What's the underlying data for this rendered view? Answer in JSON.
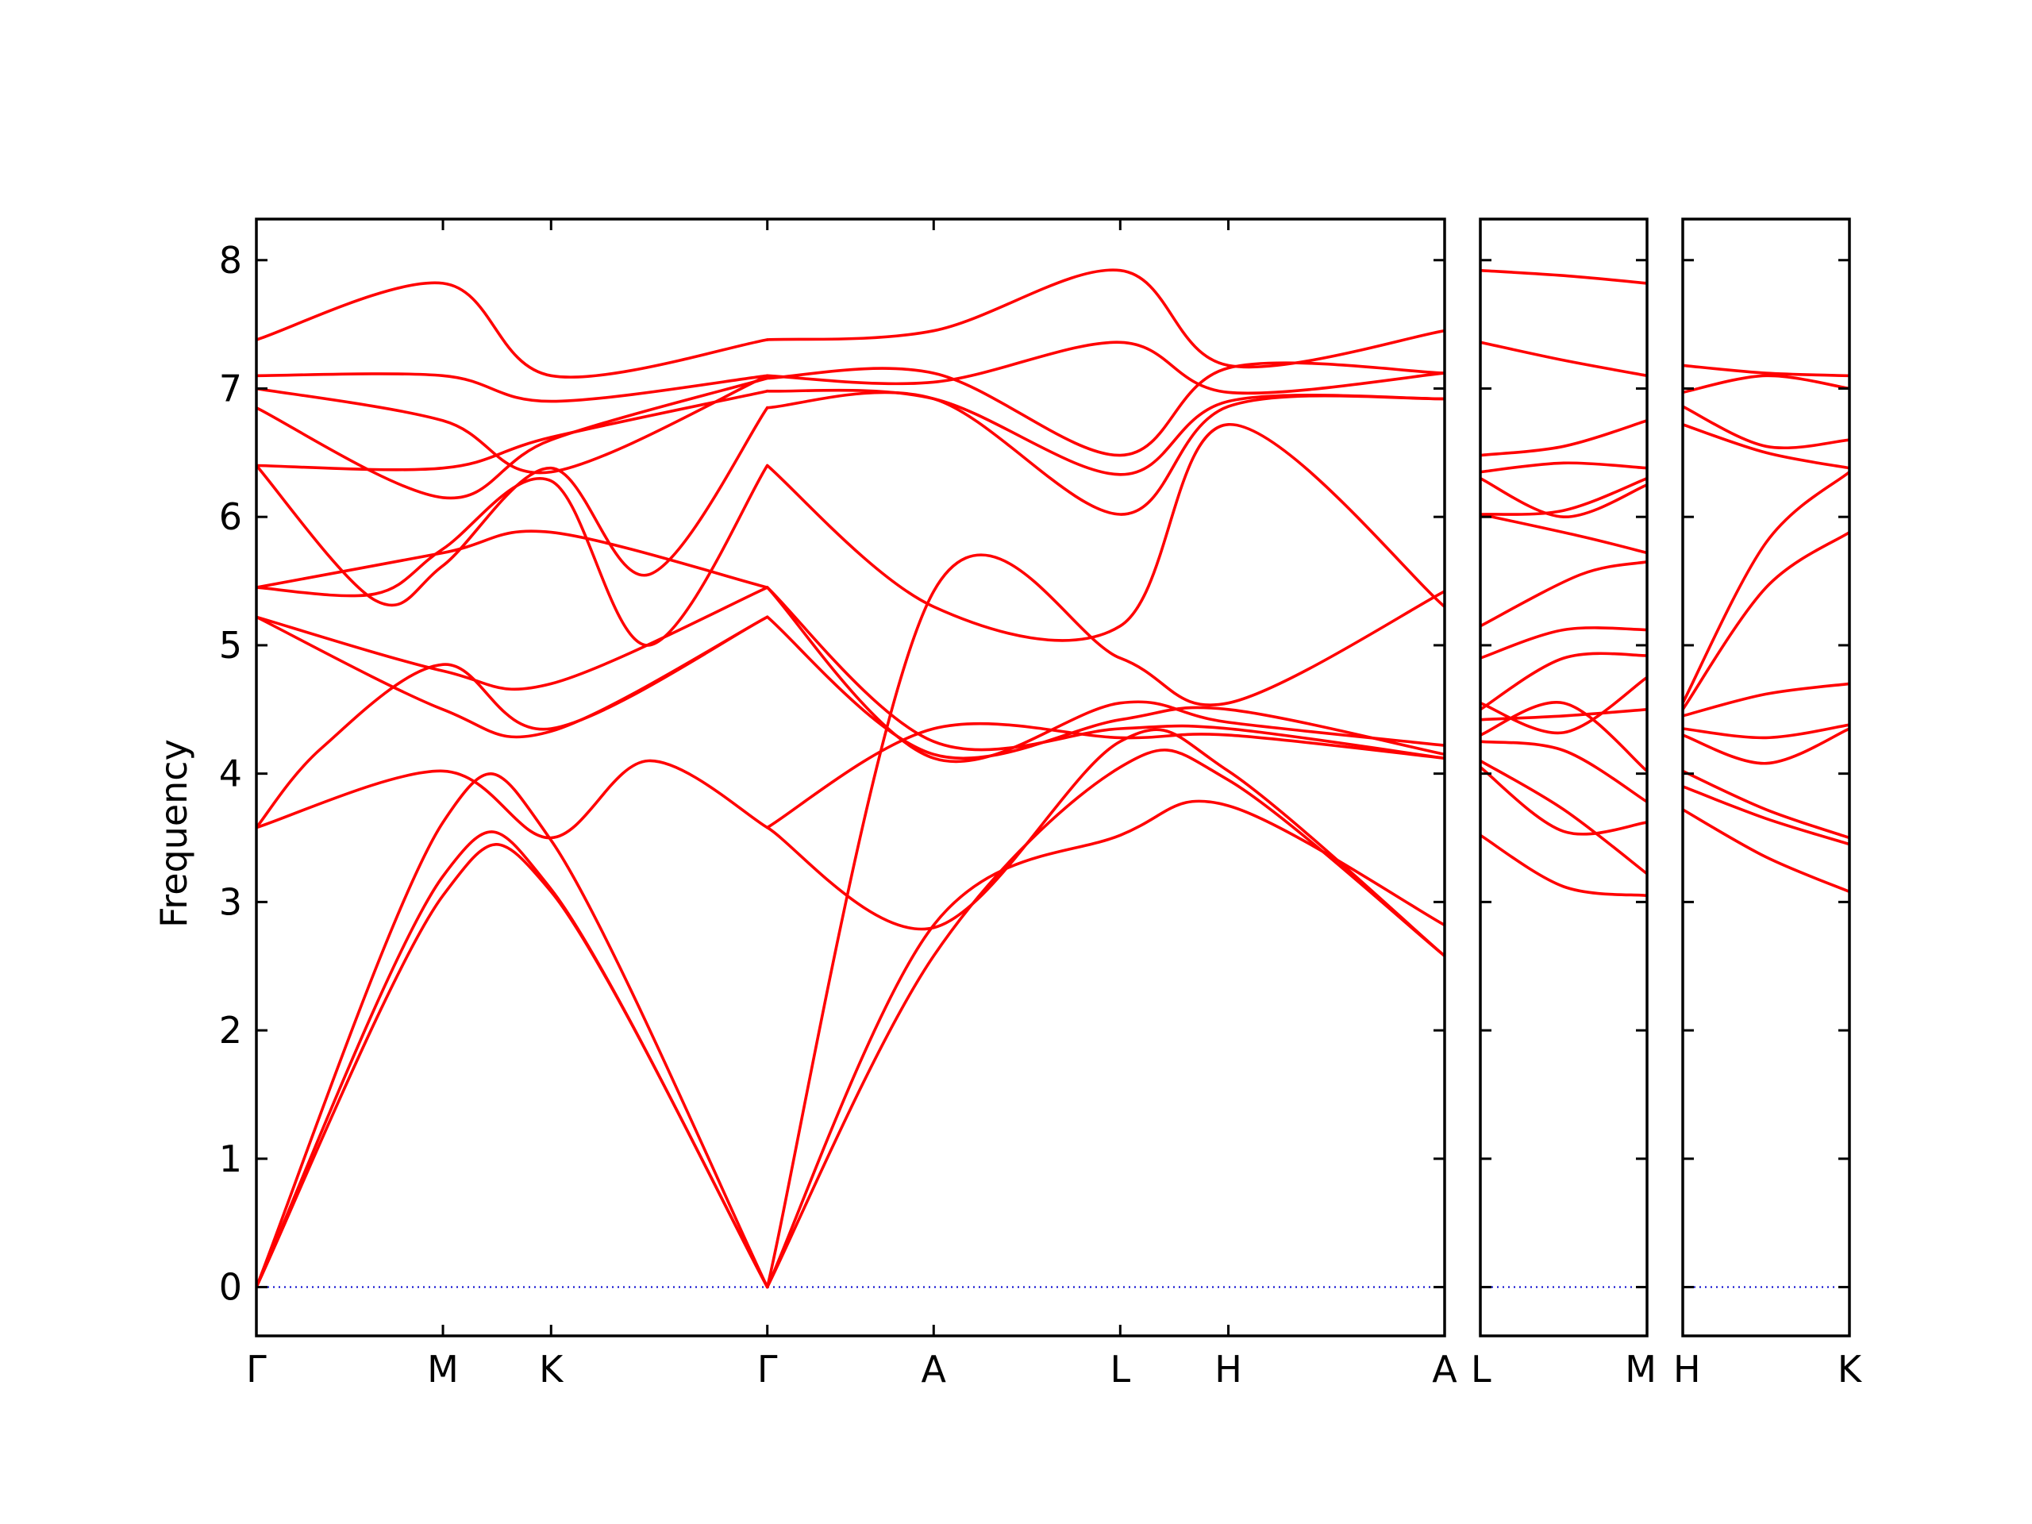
{
  "chart_data": {
    "type": "line",
    "ylabel": "Frequency",
    "ylim": [
      -0.38,
      8.32
    ],
    "yticks": [
      0,
      1,
      2,
      3,
      4,
      5,
      6,
      7,
      8
    ],
    "grid": false,
    "legend": "none",
    "colors": {
      "bands": "#ff0000",
      "zero_line": "#0000cc",
      "axes": "#000000"
    },
    "panels": [
      {
        "id": "p1",
        "xlim": [
          0,
          1.0
        ],
        "ticks": [
          {
            "label": "Γ",
            "x": 0.0
          },
          {
            "label": "M",
            "x": 0.157
          },
          {
            "label": "K",
            "x": 0.248
          },
          {
            "label": "Γ",
            "x": 0.43
          },
          {
            "label": "A",
            "x": 0.57
          },
          {
            "label": "L",
            "x": 0.727
          },
          {
            "label": "H",
            "x": 0.818
          },
          {
            "label": "A",
            "x": 1.0
          }
        ],
        "series": [
          {
            "x": [
              0,
              0.157,
              0.248,
              0.43
            ],
            "y": [
              0.0,
              3.05,
              3.08,
              0.0
            ]
          },
          {
            "x": [
              0,
              0.157,
              0.248,
              0.43
            ],
            "y": [
              0.0,
              3.2,
              3.1,
              0.0
            ]
          },
          {
            "x": [
              0,
              0.157,
              0.248,
              0.43
            ],
            "y": [
              0.0,
              3.62,
              3.48,
              0.0
            ]
          },
          {
            "x": [
              0,
              0.055,
              0.157,
              0.248,
              0.43
            ],
            "y": [
              3.58,
              4.2,
              4.85,
              4.35,
              5.22
            ]
          },
          {
            "x": [
              0,
              0.157,
              0.248,
              0.33,
              0.43
            ],
            "y": [
              3.58,
              4.02,
              3.5,
              4.1,
              3.58
            ]
          },
          {
            "x": [
              0,
              0.157,
              0.248,
              0.43
            ],
            "y": [
              5.22,
              4.5,
              4.33,
              5.22
            ]
          },
          {
            "x": [
              0,
              0.157,
              0.248,
              0.43
            ],
            "y": [
              5.22,
              4.8,
              4.7,
              5.45
            ]
          },
          {
            "x": [
              0,
              0.157,
              0.248,
              0.43
            ],
            "y": [
              5.45,
              5.72,
              5.88,
              5.45
            ]
          },
          {
            "x": [
              0,
              0.1,
              0.157,
              0.248,
              0.33,
              0.43
            ],
            "y": [
              5.45,
              5.4,
              5.75,
              6.28,
              5.0,
              6.4
            ]
          },
          {
            "x": [
              0,
              0.1,
              0.157,
              0.248,
              0.33,
              0.43
            ],
            "y": [
              6.4,
              5.35,
              5.62,
              6.38,
              5.55,
              6.85
            ]
          },
          {
            "x": [
              0,
              0.157,
              0.248,
              0.43
            ],
            "y": [
              6.4,
              6.38,
              6.62,
              6.98
            ]
          },
          {
            "x": [
              0,
              0.157,
              0.248,
              0.43
            ],
            "y": [
              6.85,
              6.15,
              6.6,
              7.08
            ]
          },
          {
            "x": [
              0,
              0.157,
              0.248,
              0.43
            ],
            "y": [
              7.0,
              6.75,
              6.35,
              7.1
            ]
          },
          {
            "x": [
              0,
              0.157,
              0.248,
              0.43
            ],
            "y": [
              7.1,
              7.1,
              6.9,
              7.1
            ]
          },
          {
            "x": [
              0,
              0.157,
              0.248,
              0.43
            ],
            "y": [
              7.38,
              7.82,
              7.1,
              7.38
            ]
          },
          {
            "x": [
              0.43,
              0.57,
              0.727,
              0.818,
              1.0
            ],
            "y": [
              0.0,
              2.58,
              4.05,
              3.95,
              2.58
            ]
          },
          {
            "x": [
              0.43,
              0.57,
              0.727,
              0.818,
              1.0
            ],
            "y": [
              0.0,
              2.82,
              3.52,
              3.75,
              2.82
            ]
          },
          {
            "x": [
              0.43,
              0.57,
              0.727,
              0.818,
              1.0
            ],
            "y": [
              3.58,
              2.8,
              4.25,
              4.02,
              2.58
            ]
          },
          {
            "x": [
              0.43,
              0.57,
              0.727,
              0.818,
              1.0
            ],
            "y": [
              3.58,
              4.35,
              4.28,
              4.3,
              4.12
            ]
          },
          {
            "x": [
              0.43,
              0.57,
              0.727,
              0.818,
              1.0
            ],
            "y": [
              5.22,
              4.15,
              4.42,
              4.5,
              4.15
            ]
          },
          {
            "x": [
              0.43,
              0.57,
              0.727,
              0.818,
              1.0
            ],
            "y": [
              5.45,
              4.12,
              4.55,
              4.4,
              4.22
            ]
          },
          {
            "x": [
              0.43,
              0.57,
              0.727,
              0.818,
              1.0
            ],
            "y": [
              5.45,
              4.25,
              4.35,
              4.35,
              4.12
            ]
          },
          {
            "x": [
              0.43,
              0.57,
              0.727,
              0.818,
              1.0
            ],
            "y": [
              0.0,
              5.42,
              4.9,
              4.55,
              5.42
            ]
          },
          {
            "x": [
              0.43,
              0.57,
              0.727,
              0.818,
              1.0
            ],
            "y": [
              6.4,
              5.3,
              5.15,
              6.72,
              5.3
            ]
          },
          {
            "x": [
              0.43,
              0.57,
              0.727,
              0.818,
              1.0
            ],
            "y": [
              6.85,
              6.92,
              6.02,
              6.86,
              6.92
            ]
          },
          {
            "x": [
              0.43,
              0.57,
              0.727,
              0.818,
              1.0
            ],
            "y": [
              6.98,
              6.92,
              6.33,
              6.9,
              6.92
            ]
          },
          {
            "x": [
              0.43,
              0.57,
              0.727,
              0.818,
              1.0
            ],
            "y": [
              7.08,
              7.12,
              6.48,
              7.16,
              7.12
            ]
          },
          {
            "x": [
              0.43,
              0.57,
              0.727,
              0.818,
              1.0
            ],
            "y": [
              7.1,
              7.05,
              7.36,
              6.97,
              7.12
            ]
          },
          {
            "x": [
              0.43,
              0.57,
              0.727,
              0.818,
              1.0
            ],
            "y": [
              7.38,
              7.45,
              7.92,
              7.18,
              7.45
            ]
          }
        ]
      },
      {
        "id": "p2",
        "xlim": [
          0,
          1.0
        ],
        "ticks": [
          {
            "label": "L",
            "x": 0.0
          },
          {
            "label": "M",
            "x": 1.0
          }
        ],
        "series": [
          {
            "x": [
              0,
              0.5,
              1.0
            ],
            "y": [
              3.52,
              3.12,
              3.05
            ]
          },
          {
            "x": [
              0,
              0.5,
              1.0
            ],
            "y": [
              4.05,
              3.55,
              3.62
            ]
          },
          {
            "x": [
              0,
              0.5,
              1.0
            ],
            "y": [
              4.1,
              3.72,
              3.22
            ]
          },
          {
            "x": [
              0,
              0.5,
              1.0
            ],
            "y": [
              4.25,
              4.18,
              3.78
            ]
          },
          {
            "x": [
              0,
              0.5,
              1.0
            ],
            "y": [
              4.3,
              4.55,
              4.02
            ]
          },
          {
            "x": [
              0,
              0.5,
              1.0
            ],
            "y": [
              4.42,
              4.45,
              4.5
            ]
          },
          {
            "x": [
              0,
              0.5,
              1.0
            ],
            "y": [
              4.5,
              4.9,
              4.92
            ]
          },
          {
            "x": [
              0,
              0.5,
              1.0
            ],
            "y": [
              4.55,
              4.32,
              4.75
            ]
          },
          {
            "x": [
              0,
              0.5,
              1.0
            ],
            "y": [
              4.9,
              5.12,
              5.12
            ]
          },
          {
            "x": [
              0,
              0.6,
              1.0
            ],
            "y": [
              5.15,
              5.55,
              5.65
            ]
          },
          {
            "x": [
              0,
              0.6,
              1.0
            ],
            "y": [
              6.02,
              5.85,
              5.72
            ]
          },
          {
            "x": [
              0,
              0.5,
              1.0
            ],
            "y": [
              6.02,
              6.05,
              6.3
            ]
          },
          {
            "x": [
              0,
              0.5,
              1.0
            ],
            "y": [
              6.3,
              6.0,
              6.25
            ]
          },
          {
            "x": [
              0,
              0.5,
              1.0
            ],
            "y": [
              6.35,
              6.42,
              6.38
            ]
          },
          {
            "x": [
              0,
              0.5,
              1.0
            ],
            "y": [
              6.48,
              6.55,
              6.75
            ]
          },
          {
            "x": [
              0,
              0.5,
              1.0
            ],
            "y": [
              7.36,
              7.22,
              7.1
            ]
          },
          {
            "x": [
              0,
              0.5,
              1.0
            ],
            "y": [
              7.92,
              7.88,
              7.82
            ]
          }
        ]
      },
      {
        "id": "p3",
        "xlim": [
          0,
          1.0
        ],
        "ticks": [
          {
            "label": "H",
            "x": 0.0
          },
          {
            "label": "K",
            "x": 1.0
          }
        ],
        "series": [
          {
            "x": [
              0,
              0.5,
              1.0
            ],
            "y": [
              3.72,
              3.35,
              3.08
            ]
          },
          {
            "x": [
              0,
              0.5,
              1.0
            ],
            "y": [
              3.9,
              3.65,
              3.45
            ]
          },
          {
            "x": [
              0,
              0.5,
              1.0
            ],
            "y": [
              4.02,
              3.72,
              3.5
            ]
          },
          {
            "x": [
              0,
              0.5,
              1.0
            ],
            "y": [
              4.3,
              4.08,
              4.35
            ]
          },
          {
            "x": [
              0,
              0.5,
              1.0
            ],
            "y": [
              4.35,
              4.28,
              4.38
            ]
          },
          {
            "x": [
              0,
              0.5,
              1.0
            ],
            "y": [
              4.45,
              4.62,
              4.7
            ]
          },
          {
            "x": [
              0,
              0.5,
              1.0
            ],
            "y": [
              4.5,
              5.45,
              5.88
            ]
          },
          {
            "x": [
              0,
              0.5,
              1.0
            ],
            "y": [
              4.55,
              5.8,
              6.35
            ]
          },
          {
            "x": [
              0,
              0.5,
              1.0
            ],
            "y": [
              6.72,
              6.5,
              6.38
            ]
          },
          {
            "x": [
              0,
              0.5,
              1.0
            ],
            "y": [
              6.86,
              6.55,
              6.6
            ]
          },
          {
            "x": [
              0,
              0.5,
              1.0
            ],
            "y": [
              6.97,
              7.1,
              7.0
            ]
          },
          {
            "x": [
              0,
              0.5,
              1.0
            ],
            "y": [
              7.18,
              7.12,
              7.1
            ]
          }
        ]
      }
    ]
  }
}
